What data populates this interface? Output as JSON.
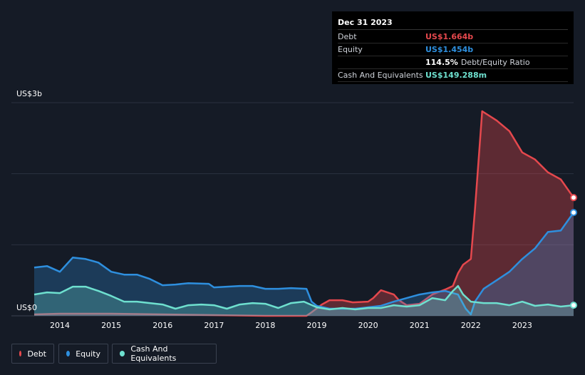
{
  "tooltip": {
    "date": "Dec 31 2023",
    "debt_label": "Debt",
    "debt_value": "US$1.664b",
    "equity_label": "Equity",
    "equity_value": "US$1.454b",
    "ratio_value": "114.5%",
    "ratio_label": "Debt/Equity Ratio",
    "cash_label": "Cash And Equivalents",
    "cash_value": "US$149.288m"
  },
  "legend": {
    "debt": "Debt",
    "equity": "Equity",
    "cash": "Cash And Equivalents"
  },
  "colors": {
    "debt": "#e5484d",
    "equity": "#2e8fde",
    "cash": "#6ee0cf",
    "background": "#151b26"
  },
  "chart_data": {
    "type": "area",
    "ylabel_top": "US$3b",
    "ylabel_bottom": "US$0",
    "ylim": [
      0,
      3
    ],
    "y_unit": "US$ billions",
    "x_ticks": [
      "2014",
      "2015",
      "2016",
      "2017",
      "2018",
      "2019",
      "2020",
      "2021",
      "2022",
      "2023"
    ],
    "grid": true,
    "series": [
      {
        "name": "Debt",
        "points": [
          [
            2013.5,
            0.02
          ],
          [
            2014.0,
            0.03
          ],
          [
            2015.0,
            0.03
          ],
          [
            2016.0,
            0.02
          ],
          [
            2017.0,
            0.01
          ],
          [
            2018.0,
            0.0
          ],
          [
            2018.8,
            0.0
          ],
          [
            2018.9,
            0.05
          ],
          [
            2019.1,
            0.16
          ],
          [
            2019.25,
            0.22
          ],
          [
            2019.5,
            0.22
          ],
          [
            2019.7,
            0.19
          ],
          [
            2020.0,
            0.2
          ],
          [
            2020.1,
            0.25
          ],
          [
            2020.25,
            0.36
          ],
          [
            2020.5,
            0.3
          ],
          [
            2020.6,
            0.22
          ],
          [
            2020.75,
            0.15
          ],
          [
            2021.0,
            0.17
          ],
          [
            2021.25,
            0.3
          ],
          [
            2021.5,
            0.37
          ],
          [
            2021.65,
            0.42
          ],
          [
            2021.75,
            0.6
          ],
          [
            2021.85,
            0.72
          ],
          [
            2022.0,
            0.8
          ],
          [
            2022.08,
            1.5
          ],
          [
            2022.22,
            2.88
          ],
          [
            2022.5,
            2.75
          ],
          [
            2022.75,
            2.6
          ],
          [
            2023.0,
            2.3
          ],
          [
            2023.25,
            2.2
          ],
          [
            2023.5,
            2.02
          ],
          [
            2023.75,
            1.92
          ],
          [
            2024.0,
            1.664
          ]
        ]
      },
      {
        "name": "Equity",
        "points": [
          [
            2013.5,
            0.68
          ],
          [
            2013.75,
            0.7
          ],
          [
            2014.0,
            0.62
          ],
          [
            2014.25,
            0.82
          ],
          [
            2014.5,
            0.8
          ],
          [
            2014.75,
            0.75
          ],
          [
            2015.0,
            0.62
          ],
          [
            2015.25,
            0.58
          ],
          [
            2015.5,
            0.58
          ],
          [
            2015.75,
            0.52
          ],
          [
            2016.0,
            0.43
          ],
          [
            2016.25,
            0.44
          ],
          [
            2016.5,
            0.46
          ],
          [
            2016.9,
            0.45
          ],
          [
            2017.0,
            0.4
          ],
          [
            2017.25,
            0.41
          ],
          [
            2017.5,
            0.42
          ],
          [
            2017.75,
            0.42
          ],
          [
            2018.0,
            0.38
          ],
          [
            2018.25,
            0.38
          ],
          [
            2018.5,
            0.39
          ],
          [
            2018.8,
            0.38
          ],
          [
            2018.9,
            0.2
          ],
          [
            2019.0,
            0.14
          ],
          [
            2019.25,
            0.1
          ],
          [
            2019.5,
            0.1
          ],
          [
            2019.75,
            0.1
          ],
          [
            2020.0,
            0.12
          ],
          [
            2020.25,
            0.14
          ],
          [
            2020.5,
            0.2
          ],
          [
            2020.75,
            0.25
          ],
          [
            2021.0,
            0.3
          ],
          [
            2021.25,
            0.33
          ],
          [
            2021.5,
            0.35
          ],
          [
            2021.75,
            0.3
          ],
          [
            2021.9,
            0.1
          ],
          [
            2022.0,
            0.02
          ],
          [
            2022.08,
            0.2
          ],
          [
            2022.25,
            0.38
          ],
          [
            2022.5,
            0.5
          ],
          [
            2022.75,
            0.62
          ],
          [
            2023.0,
            0.8
          ],
          [
            2023.25,
            0.95
          ],
          [
            2023.5,
            1.18
          ],
          [
            2023.75,
            1.2
          ],
          [
            2024.0,
            1.454
          ]
        ]
      },
      {
        "name": "Cash And Equivalents",
        "points": [
          [
            2013.5,
            0.3
          ],
          [
            2013.75,
            0.33
          ],
          [
            2014.0,
            0.32
          ],
          [
            2014.25,
            0.41
          ],
          [
            2014.5,
            0.41
          ],
          [
            2014.75,
            0.35
          ],
          [
            2015.0,
            0.28
          ],
          [
            2015.25,
            0.2
          ],
          [
            2015.5,
            0.2
          ],
          [
            2015.75,
            0.18
          ],
          [
            2016.0,
            0.16
          ],
          [
            2016.25,
            0.1
          ],
          [
            2016.5,
            0.15
          ],
          [
            2016.75,
            0.16
          ],
          [
            2017.0,
            0.15
          ],
          [
            2017.25,
            0.1
          ],
          [
            2017.5,
            0.16
          ],
          [
            2017.75,
            0.18
          ],
          [
            2018.0,
            0.17
          ],
          [
            2018.25,
            0.11
          ],
          [
            2018.5,
            0.18
          ],
          [
            2018.75,
            0.2
          ],
          [
            2019.0,
            0.12
          ],
          [
            2019.25,
            0.09
          ],
          [
            2019.5,
            0.11
          ],
          [
            2019.75,
            0.09
          ],
          [
            2020.0,
            0.11
          ],
          [
            2020.25,
            0.11
          ],
          [
            2020.5,
            0.15
          ],
          [
            2020.75,
            0.13
          ],
          [
            2021.0,
            0.15
          ],
          [
            2021.25,
            0.25
          ],
          [
            2021.5,
            0.22
          ],
          [
            2021.65,
            0.35
          ],
          [
            2021.75,
            0.42
          ],
          [
            2021.85,
            0.3
          ],
          [
            2022.0,
            0.2
          ],
          [
            2022.25,
            0.18
          ],
          [
            2022.5,
            0.18
          ],
          [
            2022.75,
            0.15
          ],
          [
            2023.0,
            0.2
          ],
          [
            2023.25,
            0.14
          ],
          [
            2023.5,
            0.16
          ],
          [
            2023.75,
            0.13
          ],
          [
            2024.0,
            0.149
          ]
        ]
      }
    ]
  }
}
